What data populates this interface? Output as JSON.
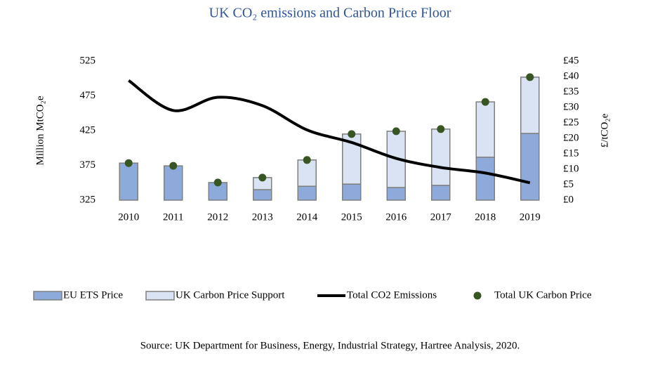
{
  "chart_data": {
    "type": "combo",
    "title": "UK CO₂ emissions and Carbon Price Floor",
    "y_label": "Million MtCO₂e",
    "y2_label": "£/tCO₂e",
    "source": "Source: UK Department for Business, Energy, Industrial Strategy, Hartree Analysis, 2020.",
    "categories": [
      "2010",
      "2011",
      "2012",
      "2013",
      "2014",
      "2015",
      "2016",
      "2017",
      "2018",
      "2019"
    ],
    "ylim": [
      325,
      525
    ],
    "yticks": [
      325,
      375,
      425,
      475,
      525
    ],
    "y2lim": [
      0,
      45
    ],
    "y2ticks": [
      {
        "value": 0,
        "label": "£0"
      },
      {
        "value": 5,
        "label": "£5"
      },
      {
        "value": 10,
        "label": "£10"
      },
      {
        "value": 15,
        "label": "£15"
      },
      {
        "value": 20,
        "label": "£20"
      },
      {
        "value": 25,
        "label": "£25"
      },
      {
        "value": 30,
        "label": "£30"
      },
      {
        "value": 35,
        "label": "£35"
      },
      {
        "value": 40,
        "label": "£40"
      },
      {
        "value": 45,
        "label": "£45"
      }
    ],
    "grid": false,
    "series": [
      {
        "name": "EU ETS Price",
        "type": "bar",
        "axis": "y2",
        "color": "#8eaadb",
        "values": [
          12.0,
          11.1,
          5.7,
          3.4,
          4.5,
          5.2,
          4.1,
          4.8,
          13.9,
          21.6
        ]
      },
      {
        "name": "UK Carbon Price Support",
        "type": "bar",
        "axis": "y2",
        "stacked": true,
        "color": "#dae3f3",
        "values": [
          0,
          0,
          0,
          3.9,
          8.5,
          16.2,
          18.2,
          18.2,
          17.9,
          18.2
        ]
      },
      {
        "name": "Total CO2 Emissions",
        "type": "line",
        "axis": "y",
        "color": "#000000",
        "values": [
          497,
          454,
          473,
          461,
          426,
          408,
          385,
          372,
          364,
          350
        ]
      },
      {
        "name": "Total UK Carbon Price",
        "type": "scatter",
        "axis": "y2",
        "color": "#375623",
        "values": [
          12.0,
          11.1,
          5.7,
          7.3,
          13.0,
          21.4,
          22.3,
          23.0,
          31.8,
          39.8
        ]
      }
    ]
  }
}
